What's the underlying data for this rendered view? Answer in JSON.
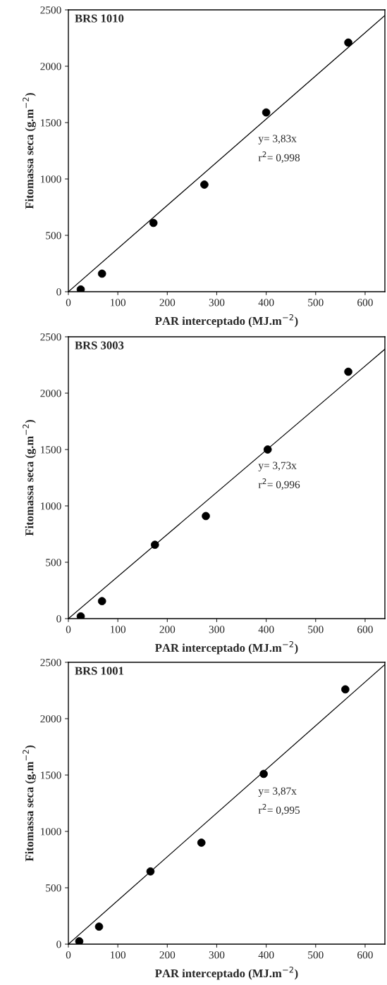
{
  "chart_data": [
    {
      "type": "scatter",
      "title": "BRS 1010",
      "xlabel": "PAR interceptado (MJ.m$^{−2}$)",
      "ylabel": "Fitomassa seca (g.m$^{−2}$)",
      "xlim": [
        0,
        640
      ],
      "ylim": [
        0,
        2500
      ],
      "xticks": [
        0,
        100,
        200,
        300,
        400,
        500,
        600
      ],
      "yticks": [
        0,
        500,
        1000,
        1500,
        2000,
        2500
      ],
      "grid": false,
      "series": [
        {
          "color": "#000000",
          "marker": "circle",
          "x": [
            25,
            68,
            172,
            275,
            400,
            566
          ],
          "values": [
            20,
            160,
            610,
            950,
            1590,
            2210
          ]
        },
        {
          "type": "line",
          "color": "#000000",
          "marker": "none",
          "x": [
            0,
            640
          ],
          "values": [
            0,
            2450
          ]
        }
      ],
      "annotations": [
        "y= 3,83x",
        "r$^{2}$= 0,998"
      ]
    },
    {
      "type": "scatter",
      "title": "BRS 3003",
      "xlabel": "PAR interceptado (MJ.m$^{−2}$)",
      "ylabel": "Fitomassa seca (g.m$^{−2}$)",
      "xlim": [
        0,
        640
      ],
      "ylim": [
        0,
        2500
      ],
      "xticks": [
        0,
        100,
        200,
        300,
        400,
        500,
        600
      ],
      "yticks": [
        0,
        500,
        1000,
        1500,
        2000,
        2500
      ],
      "grid": false,
      "series": [
        {
          "color": "#000000",
          "marker": "circle",
          "x": [
            25,
            68,
            175,
            278,
            403,
            566
          ],
          "values": [
            20,
            155,
            655,
            910,
            1500,
            2190
          ]
        },
        {
          "type": "line",
          "color": "#000000",
          "marker": "none",
          "x": [
            0,
            640
          ],
          "values": [
            0,
            2390
          ]
        }
      ],
      "annotations": [
        "y= 3,73x",
        "r$^{2}$= 0,996"
      ]
    },
    {
      "type": "scatter",
      "title": "BRS 1001",
      "xlabel": "PAR interceptado (MJ.m$^{−2}$)",
      "ylabel": "Fitomassa seca (g.m$^{−2}$)",
      "xlim": [
        0,
        640
      ],
      "ylim": [
        0,
        2500
      ],
      "xticks": [
        0,
        100,
        200,
        300,
        400,
        500,
        600
      ],
      "yticks": [
        0,
        500,
        1000,
        1500,
        2000,
        2500
      ],
      "grid": false,
      "series": [
        {
          "color": "#000000",
          "marker": "circle",
          "x": [
            22,
            62,
            166,
            269,
            395,
            560
          ],
          "values": [
            25,
            155,
            645,
            900,
            1510,
            2260
          ]
        },
        {
          "type": "line",
          "color": "#000000",
          "marker": "none",
          "x": [
            0,
            640
          ],
          "values": [
            0,
            2480
          ]
        }
      ],
      "annotations": [
        "y= 3,87x",
        "r$^{2}$= 0,995"
      ]
    }
  ]
}
